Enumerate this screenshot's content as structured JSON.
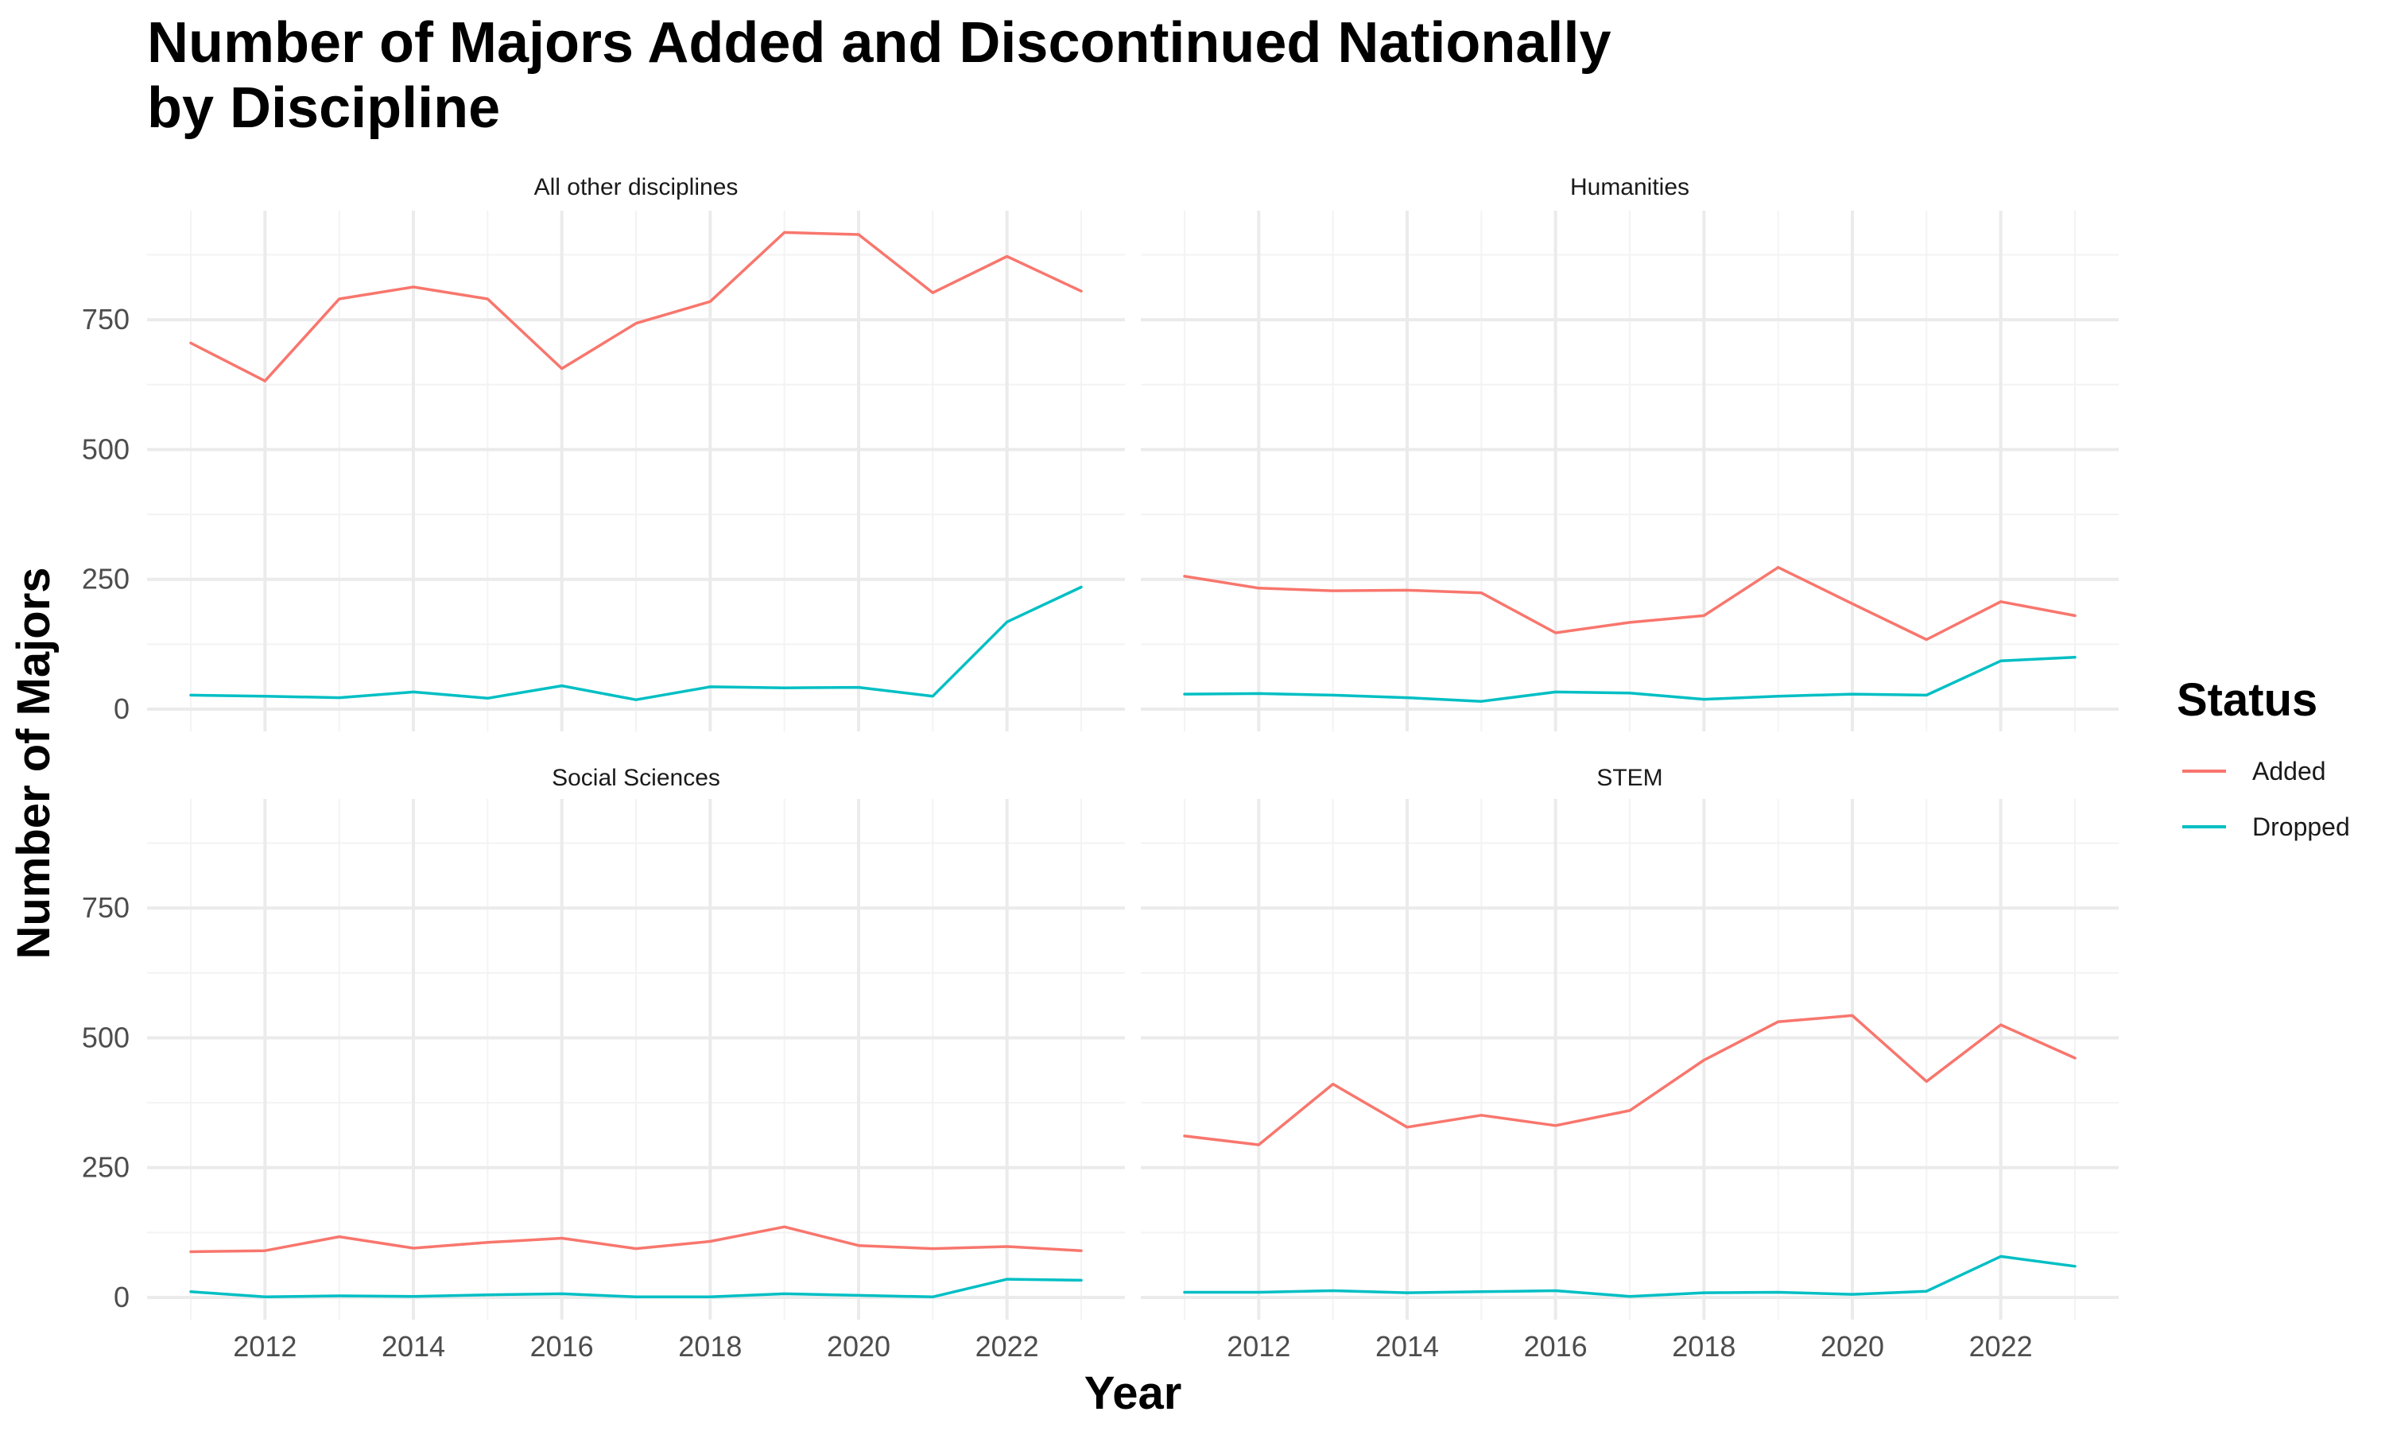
{
  "title_lines": [
    "Number of Majors Added and Discontinued Nationally",
    "by Discipline"
  ],
  "xlabel": "Year",
  "ylabel": "Number of Majors",
  "legend": {
    "title": "Status",
    "items": [
      {
        "label": "Added",
        "color": "#F8766D"
      },
      {
        "label": "Dropped",
        "color": "#00BFC4"
      }
    ]
  },
  "chart_data": {
    "type": "line",
    "title": "Number of Majors Added and Discontinued Nationally by Discipline",
    "xlabel": "Year",
    "ylabel": "Number of Majors",
    "xlim": [
      2011,
      2023
    ],
    "ylim": [
      0,
      960
    ],
    "x_ticks": [
      2012,
      2014,
      2016,
      2018,
      2020,
      2022
    ],
    "y_ticks": [
      0,
      250,
      500,
      750
    ],
    "grid": true,
    "legend_position": "right",
    "x": [
      2011,
      2012,
      2013,
      2014,
      2015,
      2016,
      2017,
      2018,
      2019,
      2020,
      2021,
      2022,
      2023
    ],
    "panels": [
      {
        "facet": "All other disciplines",
        "series": [
          {
            "name": "Added",
            "color": "#F8766D",
            "values": [
              705,
              632,
              790,
              813,
              790,
              656,
              743,
              785,
              918,
              914,
              802,
              872,
              805
            ]
          },
          {
            "name": "Dropped",
            "color": "#00BFC4",
            "values": [
              27,
              25,
              22,
              33,
              21,
              45,
              18,
              43,
              41,
              42,
              25,
              168,
              235
            ]
          }
        ]
      },
      {
        "facet": "Humanities",
        "series": [
          {
            "name": "Added",
            "color": "#F8766D",
            "values": [
              256,
              233,
              228,
              229,
              224,
              147,
              167,
              180,
              273,
              203,
              134,
              207,
              180
            ]
          },
          {
            "name": "Dropped",
            "color": "#00BFC4",
            "values": [
              29,
              30,
              27,
              22,
              15,
              33,
              31,
              19,
              25,
              29,
              27,
              93,
              100
            ]
          }
        ]
      },
      {
        "facet": "Social Sciences",
        "series": [
          {
            "name": "Added",
            "color": "#F8766D",
            "values": [
              88,
              90,
              117,
              95,
              106,
              114,
              94,
              108,
              136,
              100,
              94,
              98,
              90
            ]
          },
          {
            "name": "Dropped",
            "color": "#00BFC4",
            "values": [
              11,
              1,
              3,
              2,
              5,
              7,
              1,
              1,
              7,
              4,
              1,
              35,
              33
            ]
          }
        ]
      },
      {
        "facet": "STEM",
        "series": [
          {
            "name": "Added",
            "color": "#F8766D",
            "values": [
              311,
              294,
              411,
              328,
              351,
              331,
              360,
              457,
              531,
              543,
              416,
              525,
              461
            ]
          },
          {
            "name": "Dropped",
            "color": "#00BFC4",
            "values": [
              10,
              10,
              13,
              9,
              11,
              13,
              2,
              9,
              10,
              6,
              12,
              79,
              60
            ]
          }
        ]
      }
    ]
  }
}
